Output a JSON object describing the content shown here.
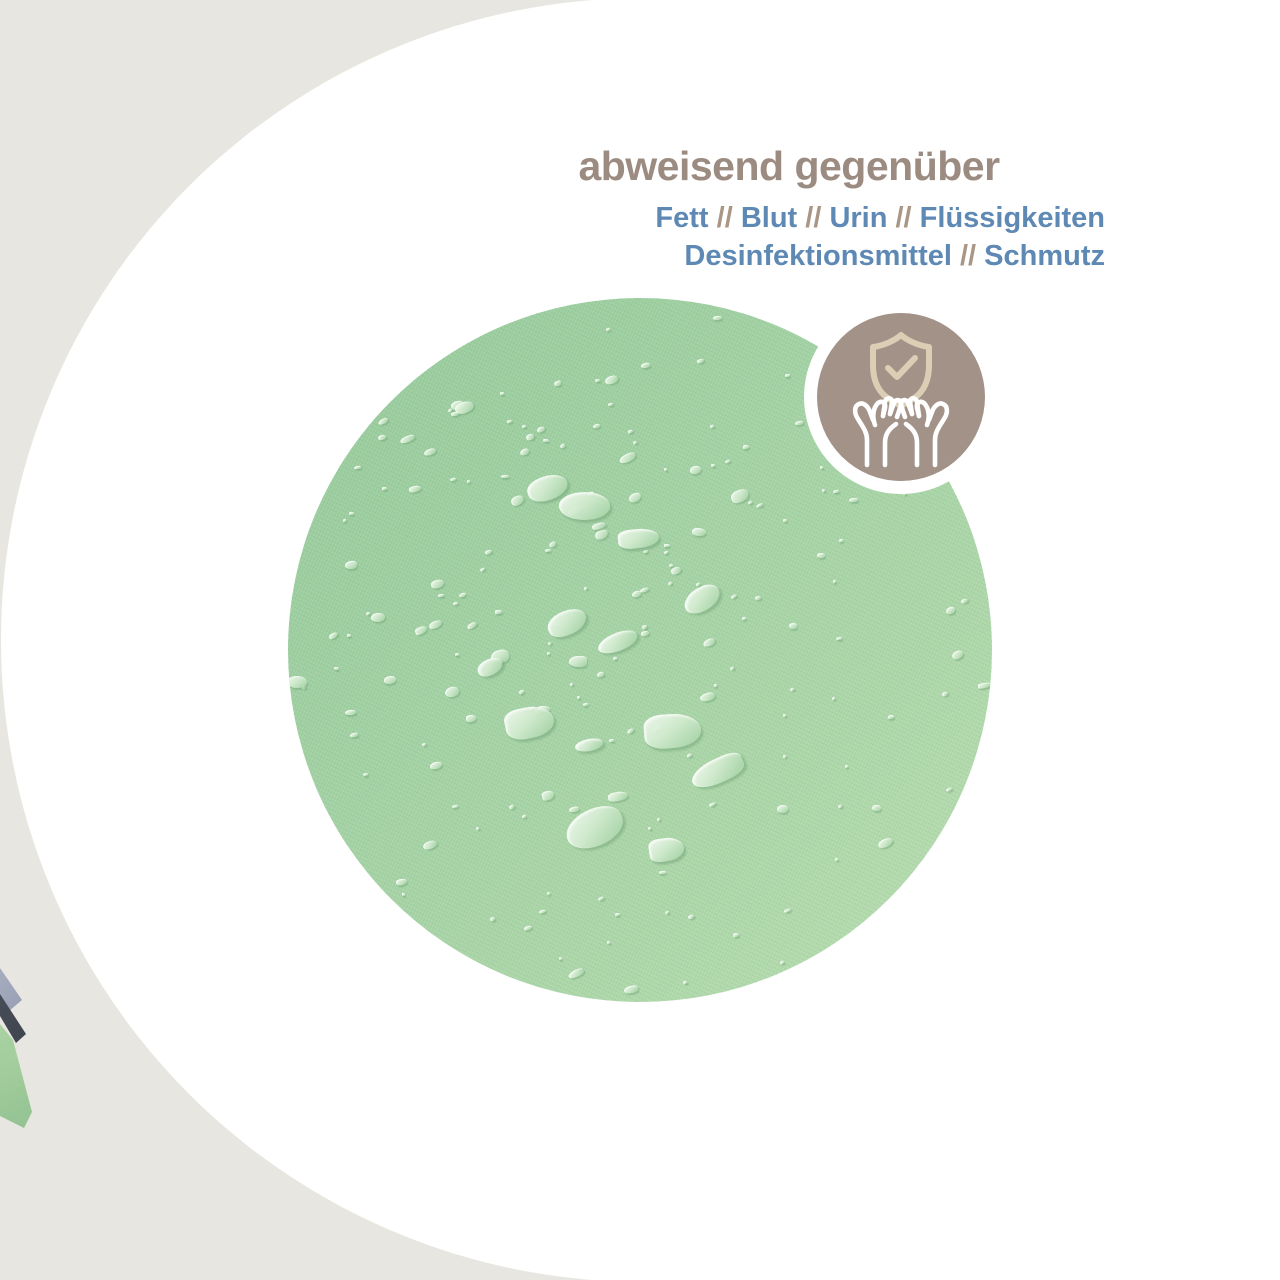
{
  "header": {
    "title": "abweisend gegenüber",
    "lines": [
      {
        "segments": [
          {
            "t": "Fett",
            "c": "blue"
          },
          {
            "t": " // ",
            "c": "taupe"
          },
          {
            "t": "Blut",
            "c": "blue"
          },
          {
            "t": " // ",
            "c": "taupe"
          },
          {
            "t": "Urin",
            "c": "blue"
          },
          {
            "t": " // ",
            "c": "taupe"
          },
          {
            "t": "Flüssigkeiten",
            "c": "blue"
          }
        ]
      },
      {
        "segments": [
          {
            "t": "Desinfektionsmittel",
            "c": "blue"
          },
          {
            "t": " // ",
            "c": "taupe"
          },
          {
            "t": "Schmutz",
            "c": "blue"
          }
        ]
      }
    ]
  },
  "badge": {
    "icon": "hands-holding-shield-check-icon"
  },
  "colors": {
    "background_beige": "#e8e6e0",
    "background_white": "#ffffff",
    "fabric_green": "#a2d1a3",
    "droplet_highlight": "#e4f4e0",
    "badge_taupe": "#a39288",
    "shield_cream": "#dbceb4",
    "hands_white": "#ffffff",
    "headline_taupe": "#9b8b80",
    "subtitle_blue": "#5d89b4",
    "separator_taupe": "#a99684"
  }
}
